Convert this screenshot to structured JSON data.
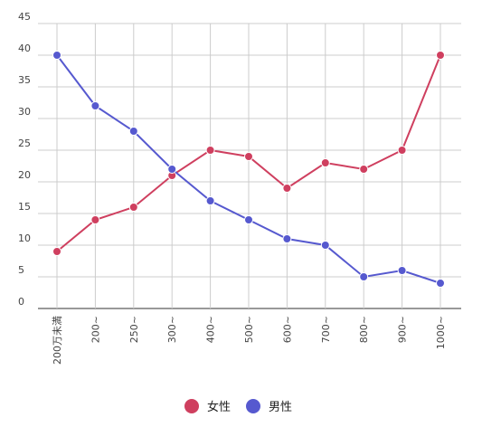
{
  "chart_data": {
    "type": "line",
    "categories": [
      "200万未満",
      "200~",
      "250~",
      "300~",
      "400~",
      "500~",
      "600~",
      "700~",
      "800~",
      "900~",
      "1000~"
    ],
    "series": [
      {
        "name": "女性",
        "color": "#cf3f5f",
        "values": [
          9,
          14,
          16,
          21,
          25,
          24,
          19,
          23,
          22,
          25,
          40
        ]
      },
      {
        "name": "男性",
        "color": "#5659cf",
        "values": [
          40,
          32,
          28,
          22,
          17,
          14,
          11,
          10,
          5,
          6,
          4
        ]
      }
    ],
    "ylim": [
      0,
      45
    ],
    "yticks": [
      0,
      5,
      10,
      15,
      20,
      25,
      30,
      35,
      40,
      45
    ],
    "grid": true,
    "legend_position": "bottom-center",
    "title": "",
    "xlabel": "",
    "ylabel": ""
  }
}
